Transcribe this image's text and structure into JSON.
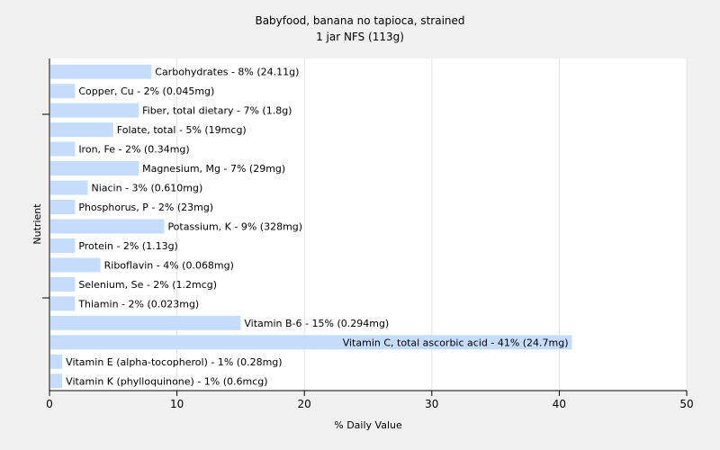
{
  "chart_data": {
    "type": "bar",
    "orientation": "horizontal",
    "title": "Babyfood, banana no tapioca, strained",
    "subtitle": "1 jar NFS (113g)",
    "xlabel": "% Daily Value",
    "ylabel": "Nutrient",
    "xlim": [
      0,
      50
    ],
    "xticks": [
      0,
      10,
      20,
      30,
      40,
      50
    ],
    "grid": true,
    "bar_color": "#c5dcfb",
    "categories": [
      "Carbohydrates",
      "Copper, Cu",
      "Fiber, total dietary",
      "Folate, total",
      "Iron, Fe",
      "Magnesium, Mg",
      "Niacin",
      "Phosphorus, P",
      "Potassium, K",
      "Protein",
      "Riboflavin",
      "Selenium, Se",
      "Thiamin",
      "Vitamin B-6",
      "Vitamin C, total ascorbic acid",
      "Vitamin E (alpha-tocopherol)",
      "Vitamin K (phylloquinone)"
    ],
    "values": [
      8,
      2,
      7,
      5,
      2,
      7,
      3,
      2,
      9,
      2,
      4,
      2,
      2,
      15,
      41,
      1,
      1
    ],
    "labels": [
      "Carbohydrates - 8% (24.11g)",
      "Copper, Cu - 2% (0.045mg)",
      "Fiber, total dietary - 7% (1.8g)",
      "Folate, total - 5% (19mcg)",
      "Iron, Fe - 2% (0.34mg)",
      "Magnesium, Mg - 7% (29mg)",
      "Niacin - 3% (0.610mg)",
      "Phosphorus, P - 2% (23mg)",
      "Potassium, K - 9% (328mg)",
      "Protein - 2% (1.13g)",
      "Riboflavin - 4% (0.068mg)",
      "Selenium, Se - 2% (1.2mcg)",
      "Thiamin - 2% (0.023mg)",
      "Vitamin B-6 - 15% (0.294mg)",
      "Vitamin C, total ascorbic acid - 41% (24.7mg)",
      "Vitamin E (alpha-tocopherol) - 1% (0.28mg)",
      "Vitamin K (phylloquinone) - 1% (0.6mcg)"
    ]
  }
}
